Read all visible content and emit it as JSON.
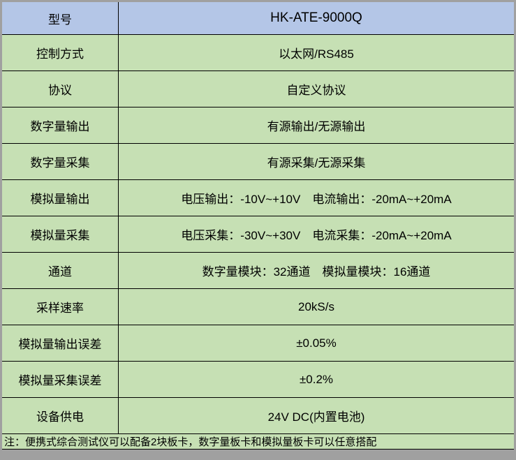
{
  "table": {
    "header": {
      "label": "型号",
      "value": "HK-ATE-9000Q"
    },
    "rows": [
      {
        "label": "控制方式",
        "value": "以太网/RS485"
      },
      {
        "label": "协议",
        "value": "自定义协议"
      },
      {
        "label": "数字量输出",
        "value": "有源输出/无源输出"
      },
      {
        "label": "数字量采集",
        "value": "有源采集/无源采集"
      },
      {
        "label": "模拟量输出",
        "value": "电压输出：-10V~+10V　电流输出：-20mA~+20mA"
      },
      {
        "label": "模拟量采集",
        "value": "电压采集：-30V~+30V　电流采集：-20mA~+20mA"
      },
      {
        "label": "通道",
        "value": "数字量模块：32通道　模拟量模块：16通道"
      },
      {
        "label": "采样速率",
        "value": "20kS/s"
      },
      {
        "label": "模拟量输出误差",
        "value": "±0.05%"
      },
      {
        "label": "模拟量采集误差",
        "value": "±0.2%"
      },
      {
        "label": "设备供电",
        "value": "24V DC(内置电池)"
      }
    ],
    "note": "注：便携式综合测试仪可以配备2块板卡，数字量板卡和模拟量板卡可以任意搭配"
  },
  "colors": {
    "header_bg": "#b4c6e7",
    "row_bg": "#c6e0b4",
    "grid_border": "#000000",
    "outer_frame": "#a0a0a0"
  }
}
